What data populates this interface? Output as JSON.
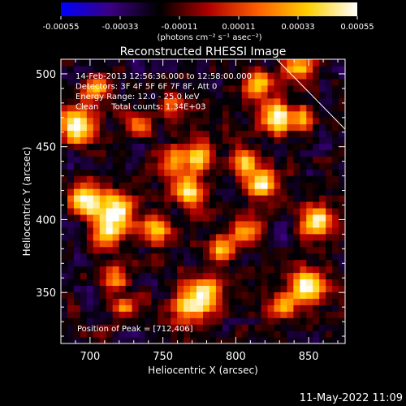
{
  "chart_data": {
    "type": "heatmap",
    "title": "Reconstructed RHESSI Image",
    "xlabel": "Heliocentric X (arcsec)",
    "ylabel": "Heliocentric Y (arcsec)",
    "xlim": [
      680,
      875
    ],
    "ylim": [
      315,
      510
    ],
    "x_ticks": [
      700,
      750,
      800,
      850
    ],
    "y_ticks": [
      350,
      400,
      450,
      500
    ],
    "annotations": [
      "14-Feb-2013 12:56:36.000 to 12:58:00.000",
      "Detectors: 3F 4F 5F 6F 7F 8F, Att 0",
      "Energy Range: 12.0 - 25.0 keV",
      "Clean     Total counts: 1.34E+03"
    ],
    "peak_label": "Position of Peak = [712,406]",
    "peak": {
      "x": 712,
      "y": 406
    },
    "colorbar": {
      "min": -0.00055,
      "max": 0.00055,
      "ticks": [
        "-0.00055",
        "-0.00033",
        "-0.00011",
        "0.00011",
        "0.00033",
        "0.00055"
      ],
      "units": "(photons cm⁻² s⁻¹ asec⁻²)",
      "colors": [
        "#0000ff",
        "#3a0080",
        "#000000",
        "#b00000",
        "#ff6000",
        "#ffd000",
        "#ffffff"
      ]
    },
    "limb_line": {
      "x": [
        828,
        875
      ],
      "y": [
        510,
        462
      ]
    },
    "hot_spots": [
      {
        "x": 692,
        "y": 465,
        "amp": 0.00055,
        "r": 12
      },
      {
        "x": 697,
        "y": 413,
        "amp": 0.0005,
        "r": 11
      },
      {
        "x": 717,
        "y": 407,
        "amp": 0.00055,
        "r": 12
      },
      {
        "x": 712,
        "y": 392,
        "amp": 0.0004,
        "r": 10
      },
      {
        "x": 745,
        "y": 392,
        "amp": 0.0004,
        "r": 10
      },
      {
        "x": 768,
        "y": 420,
        "amp": 0.00045,
        "r": 11
      },
      {
        "x": 758,
        "y": 440,
        "amp": 0.00035,
        "r": 9
      },
      {
        "x": 775,
        "y": 445,
        "amp": 0.00038,
        "r": 10
      },
      {
        "x": 780,
        "y": 350,
        "amp": 0.00048,
        "r": 12
      },
      {
        "x": 768,
        "y": 340,
        "amp": 0.0004,
        "r": 11
      },
      {
        "x": 718,
        "y": 360,
        "amp": 0.0003,
        "r": 9
      },
      {
        "x": 725,
        "y": 340,
        "amp": 0.00025,
        "r": 8
      },
      {
        "x": 808,
        "y": 392,
        "amp": 0.0004,
        "r": 10
      },
      {
        "x": 818,
        "y": 425,
        "amp": 0.00045,
        "r": 11
      },
      {
        "x": 805,
        "y": 440,
        "amp": 0.00035,
        "r": 9
      },
      {
        "x": 828,
        "y": 470,
        "amp": 0.00055,
        "r": 11
      },
      {
        "x": 815,
        "y": 493,
        "amp": 0.00035,
        "r": 9
      },
      {
        "x": 845,
        "y": 505,
        "amp": 0.0004,
        "r": 10
      },
      {
        "x": 855,
        "y": 400,
        "amp": 0.0005,
        "r": 11
      },
      {
        "x": 850,
        "y": 355,
        "amp": 0.0005,
        "r": 12
      },
      {
        "x": 845,
        "y": 470,
        "amp": 0.0003,
        "r": 8
      },
      {
        "x": 832,
        "y": 340,
        "amp": 0.0003,
        "r": 9
      },
      {
        "x": 735,
        "y": 465,
        "amp": 0.00025,
        "r": 8
      },
      {
        "x": 755,
        "y": 480,
        "amp": 0.00025,
        "r": 8
      },
      {
        "x": 705,
        "y": 490,
        "amp": 0.00028,
        "r": 9
      },
      {
        "x": 790,
        "y": 380,
        "amp": 0.0003,
        "r": 9
      }
    ],
    "grid": false
  },
  "footer": {
    "timestamp": "11-May-2022 11:09"
  }
}
